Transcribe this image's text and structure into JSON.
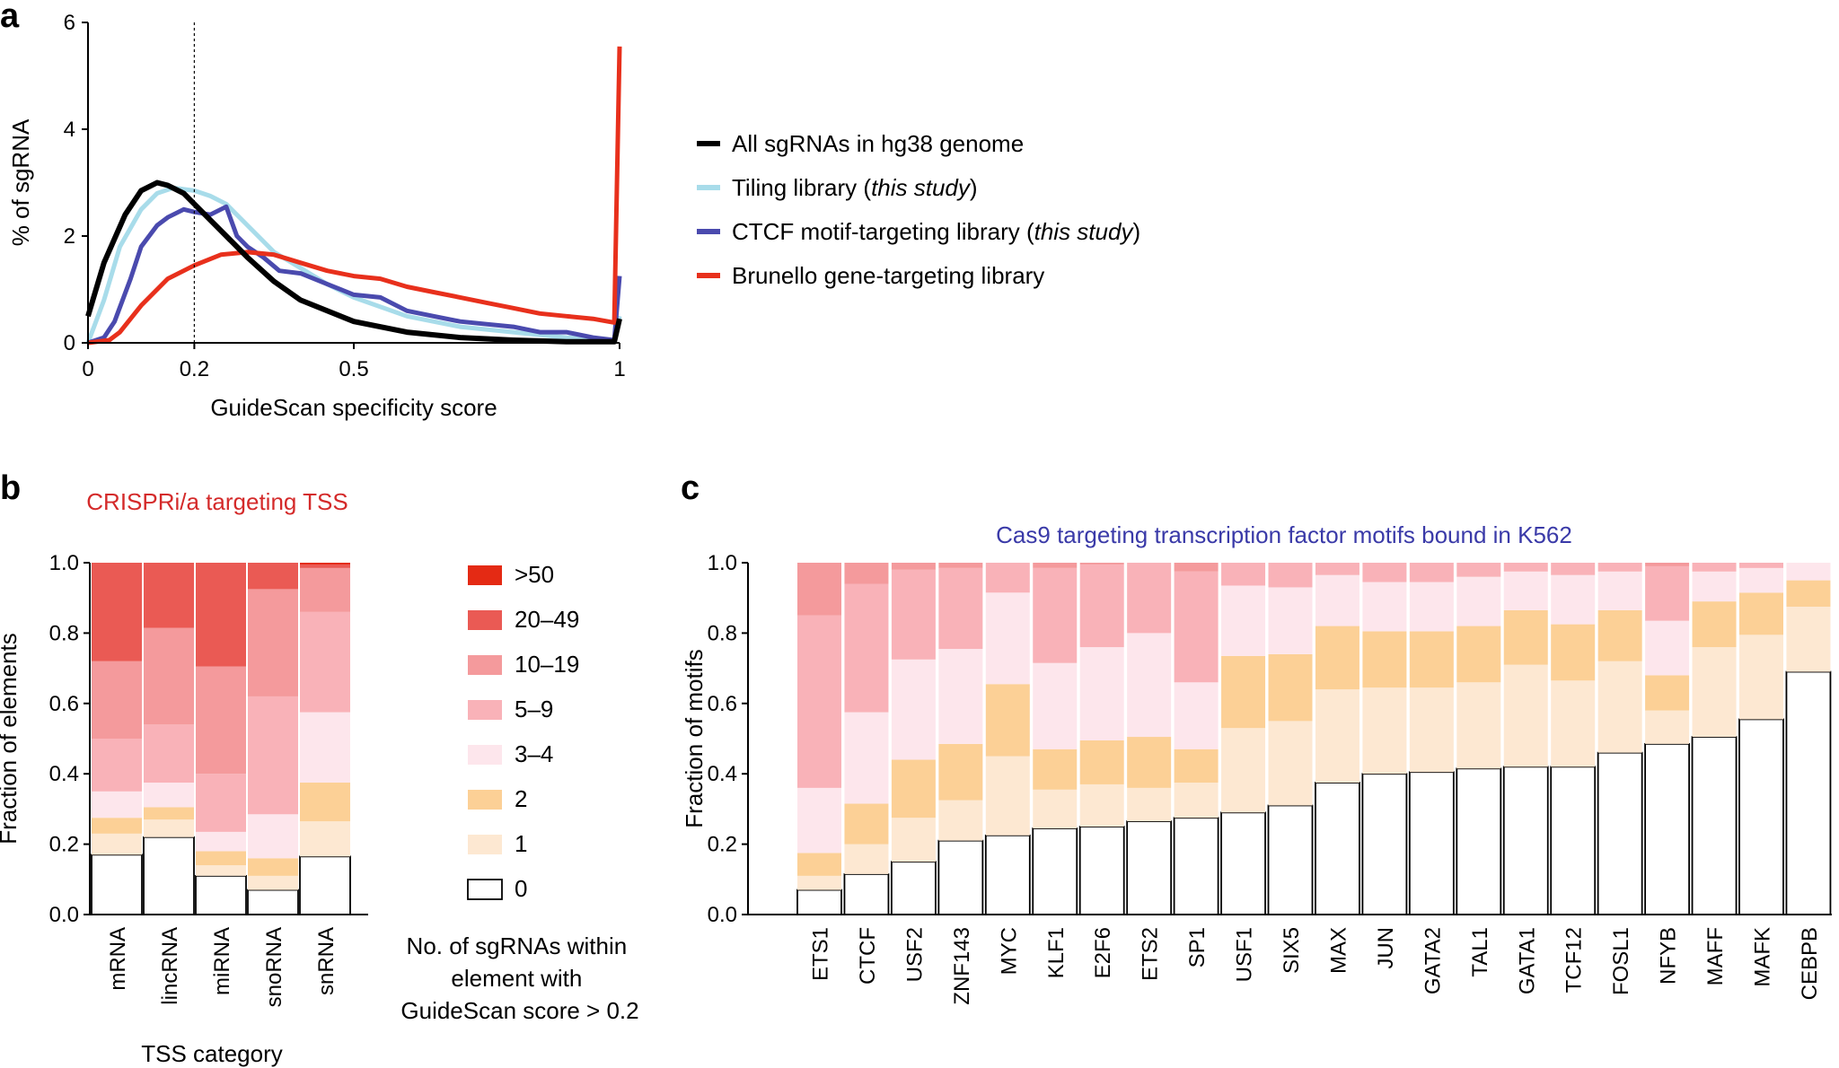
{
  "panels": {
    "a": {
      "letter": "a"
    },
    "b": {
      "letter": "b"
    },
    "c": {
      "letter": "c"
    }
  },
  "colors": {
    "all": "#000000",
    "tiling": "#a8dcea",
    "ctcf": "#4a4aae",
    "brunello": "#e8301c",
    "bins": [
      "#ffffff",
      "#fde8d2",
      "#fcd096",
      "#fde6ec",
      "#f9b2b8",
      "#f49a9c",
      "#ea5a54",
      "#e42a14"
    ],
    "title_b": "#d42a2a",
    "title_c": "#3a3aa8"
  },
  "chart_data": [
    {
      "type": "line",
      "title": "",
      "xlabel": "GuideScan specificity score",
      "ylabel": "% of sgRNA",
      "xlim": [
        0,
        1
      ],
      "ylim": [
        0,
        6
      ],
      "xticks": [
        "0",
        "0.2",
        "0.5",
        "1"
      ],
      "yticks": [
        "0",
        "2",
        "4",
        "6"
      ],
      "vline_x": 0.2,
      "legend_placement": "right",
      "series": [
        {
          "name": "All sgRNAs in hg38 genome",
          "x": [
            0,
            0.03,
            0.07,
            0.1,
            0.13,
            0.15,
            0.18,
            0.2,
            0.25,
            0.3,
            0.35,
            0.4,
            0.5,
            0.6,
            0.7,
            0.8,
            0.9,
            0.99,
            1.0
          ],
          "y": [
            0.5,
            1.5,
            2.4,
            2.85,
            3.0,
            2.95,
            2.8,
            2.6,
            2.1,
            1.6,
            1.15,
            0.8,
            0.4,
            0.2,
            0.1,
            0.05,
            0.02,
            0.02,
            0.45
          ]
        },
        {
          "name": "Tiling library (this study)",
          "name_plain": "Tiling library (",
          "name_italic": "this study",
          "name_close": ")",
          "x": [
            0,
            0.03,
            0.06,
            0.1,
            0.13,
            0.16,
            0.2,
            0.23,
            0.26,
            0.3,
            0.35,
            0.4,
            0.45,
            0.5,
            0.6,
            0.7,
            0.8,
            0.9,
            0.99,
            1.0
          ],
          "y": [
            0,
            0.8,
            1.8,
            2.5,
            2.8,
            2.9,
            2.85,
            2.75,
            2.6,
            2.2,
            1.7,
            1.4,
            1.1,
            0.85,
            0.5,
            0.3,
            0.2,
            0.1,
            0.05,
            0.5
          ]
        },
        {
          "name": "CTCF motif-targeting library (this study)",
          "name_plain": "CTCF motif-targeting library (",
          "name_italic": "this study",
          "name_close": ")",
          "x": [
            0,
            0.03,
            0.05,
            0.08,
            0.1,
            0.13,
            0.15,
            0.18,
            0.2,
            0.23,
            0.26,
            0.28,
            0.3,
            0.33,
            0.36,
            0.4,
            0.45,
            0.5,
            0.55,
            0.6,
            0.65,
            0.7,
            0.75,
            0.8,
            0.85,
            0.9,
            0.95,
            0.99,
            1.0
          ],
          "y": [
            0,
            0.1,
            0.4,
            1.2,
            1.8,
            2.2,
            2.35,
            2.5,
            2.45,
            2.4,
            2.55,
            2.0,
            1.8,
            1.6,
            1.35,
            1.3,
            1.1,
            0.9,
            0.85,
            0.6,
            0.5,
            0.4,
            0.35,
            0.3,
            0.2,
            0.2,
            0.1,
            0.05,
            1.25
          ]
        },
        {
          "name": "Brunello gene-targeting library",
          "x": [
            0,
            0.04,
            0.06,
            0.1,
            0.15,
            0.2,
            0.25,
            0.3,
            0.35,
            0.4,
            0.45,
            0.5,
            0.55,
            0.6,
            0.65,
            0.7,
            0.75,
            0.8,
            0.85,
            0.9,
            0.95,
            0.99,
            1.0
          ],
          "y": [
            0,
            0.05,
            0.2,
            0.7,
            1.2,
            1.45,
            1.65,
            1.7,
            1.65,
            1.5,
            1.35,
            1.25,
            1.2,
            1.05,
            0.95,
            0.85,
            0.75,
            0.65,
            0.55,
            0.5,
            0.45,
            0.38,
            5.55
          ]
        }
      ]
    },
    {
      "type": "bar",
      "stacked": true,
      "title": "CRISPRi/a targeting TSS",
      "xlabel": "TSS category",
      "ylabel": "Fraction of elements",
      "ylim": [
        0,
        1
      ],
      "yticks": [
        "0.0",
        "0.2",
        "0.4",
        "0.6",
        "0.8",
        "1.0"
      ],
      "categories": [
        "mRNA",
        "lincRNA",
        "miRNA",
        "snoRNA",
        "snRNA"
      ],
      "bins": [
        "0",
        "1",
        "2",
        "3–4",
        "5–9",
        "10–19",
        "20–49",
        ">50"
      ],
      "cumulative": [
        [
          0.17,
          0.23,
          0.275,
          0.35,
          0.5,
          0.72,
          1.0,
          1.0
        ],
        [
          0.22,
          0.27,
          0.305,
          0.375,
          0.54,
          0.815,
          1.0,
          1.0
        ],
        [
          0.11,
          0.14,
          0.18,
          0.235,
          0.4,
          0.705,
          1.0,
          1.0
        ],
        [
          0.07,
          0.11,
          0.16,
          0.285,
          0.62,
          0.925,
          1.0,
          1.0
        ],
        [
          0.165,
          0.265,
          0.375,
          0.575,
          0.86,
          0.985,
          0.995,
          1.0
        ]
      ],
      "legend_title": "No. of sgRNAs within element with GuideScan score > 0.2",
      "legend_title_lines": [
        "No. of sgRNAs within",
        "element with",
        "GuideScan score > 0.2"
      ],
      "legend_items": [
        ">50",
        "20–49",
        "10–19",
        "5–9",
        "3–4",
        "2",
        "1",
        "0"
      ]
    },
    {
      "type": "bar",
      "stacked": true,
      "title": "Cas9 targeting transcription factor motifs bound in K562",
      "xlabel": "",
      "ylabel": "Fraction of motifs",
      "ylim": [
        0,
        1
      ],
      "yticks": [
        "0.0",
        "0.2",
        "0.4",
        "0.6",
        "0.8",
        "1.0"
      ],
      "categories": [
        "ETS1",
        "CTCF",
        "USF2",
        "ZNF143",
        "MYC",
        "KLF1",
        "E2F6",
        "ETS2",
        "SP1",
        "USF1",
        "SIX5",
        "MAX",
        "JUN",
        "GATA2",
        "TAL1",
        "GATA1",
        "TCF12",
        "FOSL1",
        "NFYB",
        "MAFF",
        "MAFK",
        "CEBPB"
      ],
      "bins": [
        "0",
        "1",
        "2",
        "3–4",
        "5–9",
        "10–19",
        "20–49",
        ">50"
      ],
      "cumulative": [
        [
          0.07,
          0.11,
          0.175,
          0.36,
          0.85,
          1.0,
          1.0,
          1.0
        ],
        [
          0.115,
          0.2,
          0.315,
          0.575,
          0.94,
          1.0,
          1.0,
          1.0
        ],
        [
          0.15,
          0.275,
          0.44,
          0.725,
          0.98,
          1.0,
          1.0,
          1.0
        ],
        [
          0.21,
          0.325,
          0.485,
          0.755,
          0.985,
          1.0,
          1.0,
          1.0
        ],
        [
          0.225,
          0.45,
          0.655,
          0.915,
          1.0,
          1.0,
          1.0,
          1.0
        ],
        [
          0.245,
          0.355,
          0.47,
          0.715,
          0.985,
          1.0,
          1.0,
          1.0
        ],
        [
          0.25,
          0.37,
          0.495,
          0.76,
          0.995,
          1.0,
          1.0,
          1.0
        ],
        [
          0.265,
          0.36,
          0.505,
          0.8,
          1.0,
          1.0,
          1.0,
          1.0
        ],
        [
          0.275,
          0.375,
          0.47,
          0.66,
          0.975,
          1.0,
          1.0,
          1.0
        ],
        [
          0.29,
          0.53,
          0.735,
          0.935,
          1.0,
          1.0,
          1.0,
          1.0
        ],
        [
          0.31,
          0.55,
          0.74,
          0.93,
          1.0,
          1.0,
          1.0,
          1.0
        ],
        [
          0.375,
          0.64,
          0.82,
          0.965,
          1.0,
          1.0,
          1.0,
          1.0
        ],
        [
          0.4,
          0.645,
          0.805,
          0.945,
          1.0,
          1.0,
          1.0,
          1.0
        ],
        [
          0.405,
          0.645,
          0.805,
          0.945,
          1.0,
          1.0,
          1.0,
          1.0
        ],
        [
          0.415,
          0.66,
          0.82,
          0.96,
          1.0,
          1.0,
          1.0,
          1.0
        ],
        [
          0.42,
          0.71,
          0.865,
          0.975,
          1.0,
          1.0,
          1.0,
          1.0
        ],
        [
          0.42,
          0.665,
          0.825,
          0.965,
          1.0,
          1.0,
          1.0,
          1.0
        ],
        [
          0.46,
          0.72,
          0.865,
          0.975,
          1.0,
          1.0,
          1.0,
          1.0
        ],
        [
          0.485,
          0.58,
          0.68,
          0.835,
          0.99,
          1.0,
          1.0,
          1.0
        ],
        [
          0.505,
          0.76,
          0.89,
          0.975,
          1.0,
          1.0,
          1.0,
          1.0
        ],
        [
          0.555,
          0.795,
          0.915,
          0.985,
          1.0,
          1.0,
          1.0,
          1.0
        ],
        [
          0.69,
          0.875,
          0.95,
          1.0,
          1.0,
          1.0,
          1.0,
          1.0
        ]
      ]
    }
  ]
}
